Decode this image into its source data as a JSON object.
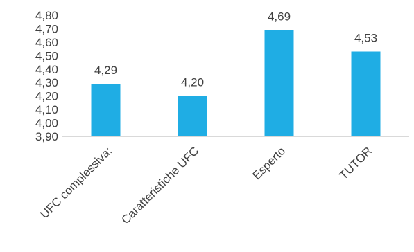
{
  "chart_data": {
    "type": "bar",
    "title": "",
    "xlabel": "",
    "ylabel": "",
    "categories": [
      "UFC complessiva:",
      "Caratteristiche UFC",
      "Esperto",
      "TUTOR"
    ],
    "values": [
      4.29,
      4.2,
      4.69,
      4.53
    ],
    "value_labels": [
      "4,29",
      "4,20",
      "4,69",
      "4,53"
    ],
    "ylim": [
      3.9,
      4.8
    ],
    "yticks": [
      3.9,
      4.0,
      4.1,
      4.2,
      4.3,
      4.4,
      4.5,
      4.6,
      4.7,
      4.8
    ],
    "ytick_labels": [
      "3,90",
      "4,00",
      "4,10",
      "4,20",
      "4,30",
      "4,40",
      "4,50",
      "4,60",
      "4,70",
      "4,80"
    ],
    "grid": false,
    "legend": "none",
    "colors": {
      "bar": "#1fade4",
      "axis": "#d9d9d9",
      "text": "#404040"
    }
  }
}
